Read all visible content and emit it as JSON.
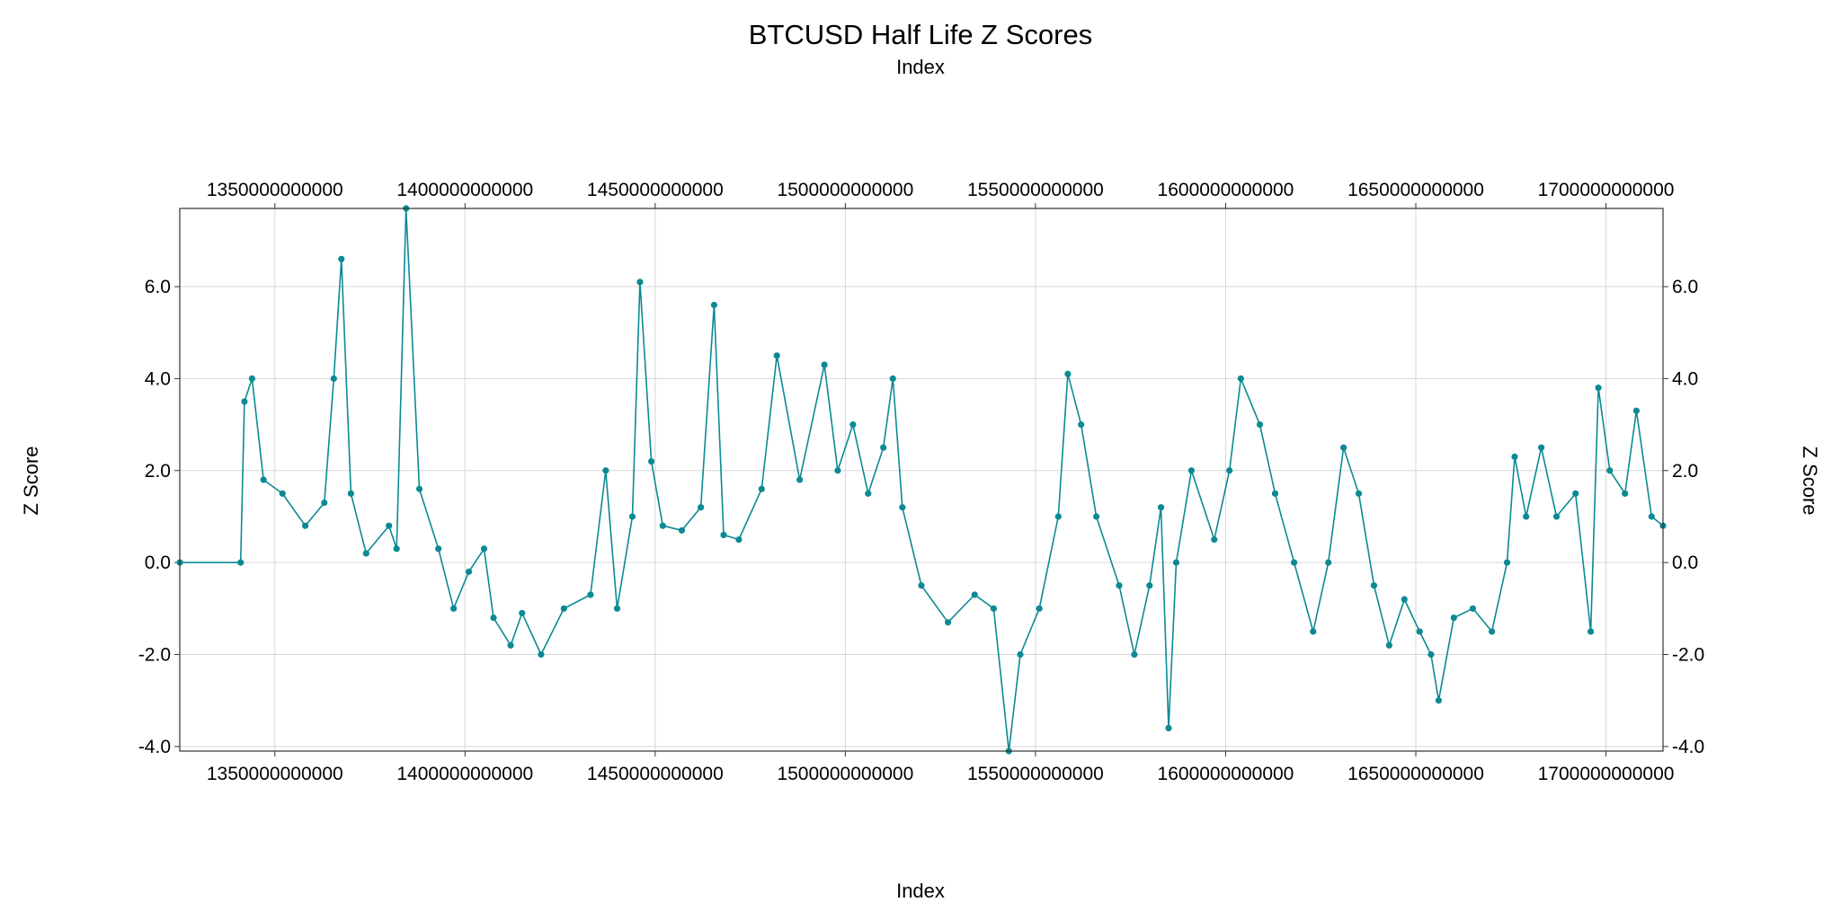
{
  "chart_data": {
    "type": "line",
    "title": "BTCUSD Half Life Z Scores",
    "xlabel_top": "Index",
    "xlabel_bottom": "Index",
    "ylabel_left": "Z Score",
    "ylabel_right": "Z Score",
    "xlim": [
      1325000000000,
      1715000000000
    ],
    "ylim": [
      -4.1,
      7.7
    ],
    "x_ticks": [
      1350000000000,
      1400000000000,
      1450000000000,
      1500000000000,
      1550000000000,
      1600000000000,
      1650000000000,
      1700000000000
    ],
    "x_tick_labels": [
      "1350000000000",
      "1400000000000",
      "1450000000000",
      "1500000000000",
      "1550000000000",
      "1600000000000",
      "1650000000000",
      "1700000000000"
    ],
    "y_ticks": [
      -4,
      -2,
      0,
      2,
      4,
      6
    ],
    "y_tick_labels": [
      "-4.0",
      "-2.0",
      "0.0",
      "2.0",
      "4.0",
      "6.0"
    ],
    "grid": true,
    "line_color": "#0b8a94",
    "marker_color": "#0b8a94",
    "series": [
      {
        "x": [
          1325000000000,
          1341000000000,
          1342000000000,
          1344000000000,
          1347000000000,
          1352000000000,
          1358000000000,
          1363000000000,
          1365500000000,
          1367500000000,
          1370000000000,
          1374000000000,
          1380000000000,
          1382000000000,
          1384500000000,
          1388000000000,
          1393000000000,
          1397000000000,
          1401000000000,
          1405000000000,
          1407500000000,
          1412000000000,
          1415000000000,
          1420000000000,
          1426000000000,
          1433000000000,
          1437000000000,
          1440000000000,
          1444000000000,
          1446000000000,
          1449000000000,
          1452000000000,
          1457000000000,
          1462000000000,
          1465500000000,
          1468000000000,
          1472000000000,
          1478000000000,
          1482000000000,
          1488000000000,
          1494500000000,
          1498000000000,
          1502000000000,
          1506000000000,
          1510000000000,
          1512500000000,
          1515000000000,
          1520000000000,
          1527000000000,
          1534000000000,
          1539000000000,
          1543000000000,
          1546000000000,
          1551000000000,
          1556000000000,
          1558500000000,
          1562000000000,
          1566000000000,
          1572000000000,
          1576000000000,
          1580000000000,
          1583000000000,
          1585000000000,
          1587000000000,
          1591000000000,
          1597000000000,
          1601000000000,
          1604000000000,
          1609000000000,
          1613000000000,
          1618000000000,
          1623000000000,
          1627000000000,
          1631000000000,
          1635000000000,
          1639000000000,
          1643000000000,
          1647000000000,
          1651000000000,
          1654000000000,
          1656000000000,
          1660000000000,
          1665000000000,
          1670000000000,
          1674000000000,
          1676000000000,
          1679000000000,
          1683000000000,
          1687000000000,
          1692000000000,
          1696000000000,
          1698000000000,
          1701000000000,
          1705000000000,
          1708000000000,
          1712000000000,
          1715000000000
        ],
        "y": [
          0.0,
          0.0,
          3.5,
          4.0,
          1.8,
          1.5,
          0.8,
          1.3,
          4.0,
          6.6,
          1.5,
          0.2,
          0.8,
          0.3,
          7.7,
          1.6,
          0.3,
          -1.0,
          -0.2,
          0.3,
          -1.2,
          -1.8,
          -1.1,
          -2.0,
          -1.0,
          -0.7,
          2.0,
          -1.0,
          1.0,
          6.1,
          2.2,
          0.8,
          0.7,
          1.2,
          5.6,
          0.6,
          0.5,
          1.6,
          4.5,
          1.8,
          4.3,
          2.0,
          3.0,
          1.5,
          2.5,
          4.0,
          1.2,
          -0.5,
          -1.3,
          -0.7,
          -1.0,
          -4.1,
          -2.0,
          -1.0,
          1.0,
          4.1,
          3.0,
          1.0,
          -0.5,
          -2.0,
          -0.5,
          1.2,
          -3.6,
          0.0,
          2.0,
          0.5,
          2.0,
          4.0,
          3.0,
          1.5,
          0.0,
          -1.5,
          0.0,
          2.5,
          1.5,
          -0.5,
          -1.8,
          -0.8,
          -1.5,
          -2.0,
          -3.0,
          -1.2,
          -1.0,
          -1.5,
          0.0,
          2.3,
          1.0,
          2.5,
          1.0,
          1.5,
          -1.5,
          3.8,
          2.0,
          1.5,
          3.3,
          1.0,
          0.8
        ]
      }
    ]
  }
}
